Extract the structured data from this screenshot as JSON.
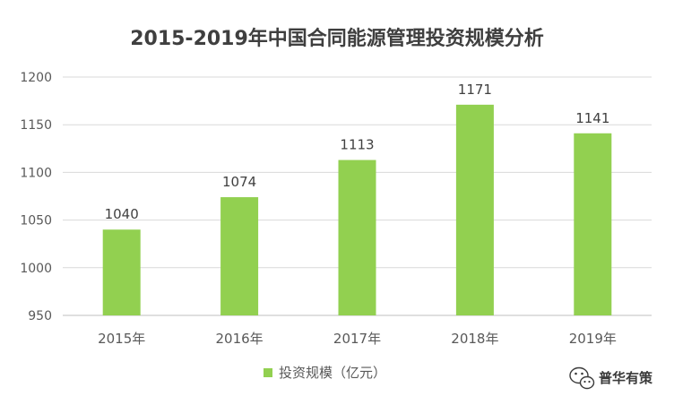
{
  "chart_data": {
    "type": "bar",
    "title": "2015-2019年中国合同能源管理投资规模分析",
    "categories": [
      "2015年",
      "2016年",
      "2017年",
      "2018年",
      "2019年"
    ],
    "series": [
      {
        "name": "投资规模（亿元）",
        "values": [
          1040,
          1074,
          1113,
          1171,
          1141
        ]
      }
    ],
    "ylim": [
      950,
      1200
    ],
    "yticks": [
      950,
      1000,
      1050,
      1100,
      1150,
      1200
    ],
    "grid": true,
    "legend": "bottom",
    "bar_color": "#92d050"
  },
  "watermark": {
    "text": "普华有策",
    "icon": "wechat-icon"
  }
}
